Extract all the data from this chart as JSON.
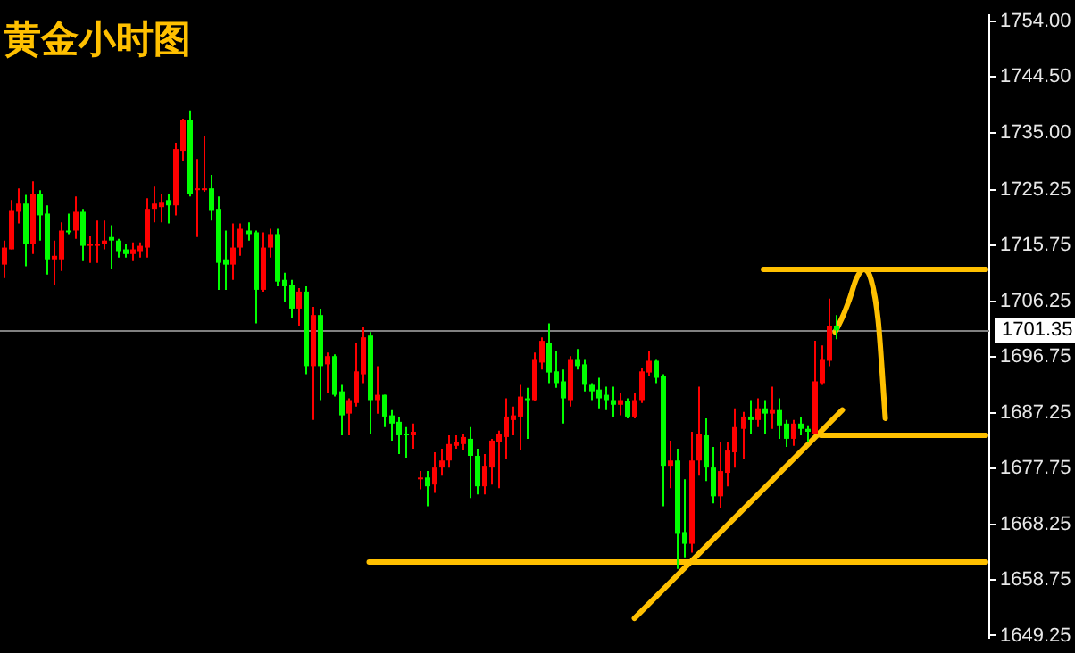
{
  "chart_data": {
    "type": "candlestick",
    "title": "黄金小时图",
    "tick_labels": "y",
    "categories": [
      null,
      null,
      null,
      null,
      null,
      null,
      null,
      null,
      null,
      null,
      null,
      null,
      null,
      null,
      null,
      null,
      null,
      null,
      null,
      null,
      null,
      null,
      null,
      null,
      null,
      null,
      null,
      null,
      null,
      null,
      null,
      null,
      null,
      null,
      null,
      null,
      null,
      null,
      null,
      null,
      null,
      null,
      null,
      null,
      null,
      null,
      null,
      null,
      null,
      null,
      null,
      null,
      null,
      null,
      null,
      null,
      null,
      null,
      null,
      null,
      null,
      null,
      null,
      null,
      null,
      null,
      null,
      null,
      null,
      null,
      null,
      null,
      null,
      null,
      null,
      null,
      null,
      null,
      null,
      null,
      null,
      null,
      null,
      null,
      null,
      null,
      null,
      null,
      null,
      null,
      null,
      null,
      null,
      null,
      null,
      null,
      null,
      null,
      null,
      null,
      null,
      null,
      null,
      null,
      null,
      null,
      null,
      null,
      null,
      null,
      null,
      null,
      null,
      null,
      null,
      null,
      null,
      null,
      null,
      null,
      null,
      null,
      null,
      null,
      null,
      null,
      null,
      null,
      null,
      null,
      null,
      null,
      null,
      null,
      null,
      null,
      null,
      null
    ],
    "ohlc": [
      [
        1712.5,
        1716.6,
        1710.2,
        1715.4
      ],
      [
        1715.1,
        1723.5,
        1715.1,
        1721.8
      ],
      [
        1721.5,
        1725.5,
        1719.5,
        1722.9
      ],
      [
        1722.9,
        1724.4,
        1712.2,
        1716.0
      ],
      [
        1716.0,
        1726.7,
        1714.3,
        1724.6
      ],
      [
        1724.6,
        1725.2,
        1716.6,
        1720.9
      ],
      [
        1721.2,
        1722.6,
        1710.8,
        1713.4
      ],
      [
        1713.4,
        1716.6,
        1709.1,
        1714.0
      ],
      [
        1713.4,
        1719.7,
        1711.4,
        1718.3
      ],
      [
        1718.3,
        1721.2,
        1717.7,
        1718.0
      ],
      [
        1718.3,
        1724.1,
        1716.9,
        1721.5
      ],
      [
        1721.5,
        1722.0,
        1713.1,
        1715.7
      ],
      [
        1715.7,
        1717.4,
        1712.8,
        1716.0
      ],
      [
        1715.7,
        1720.0,
        1712.8,
        1716.0
      ],
      [
        1716.0,
        1720.0,
        1715.1,
        1716.6
      ],
      [
        1717.2,
        1719.2,
        1711.7,
        1716.6
      ],
      [
        1716.6,
        1716.9,
        1713.7,
        1714.8
      ],
      [
        1715.1,
        1716.0,
        1713.7,
        1714.3
      ],
      [
        1714.3,
        1716.3,
        1713.1,
        1715.1
      ],
      [
        1714.8,
        1716.3,
        1713.7,
        1715.7
      ],
      [
        1715.4,
        1723.8,
        1713.7,
        1722.0
      ],
      [
        1722.0,
        1725.8,
        1719.7,
        1722.9
      ],
      [
        1722.3,
        1724.6,
        1719.7,
        1723.2
      ],
      [
        1723.5,
        1724.6,
        1719.5,
        1722.6
      ],
      [
        1722.6,
        1733.3,
        1720.9,
        1732.2
      ],
      [
        1731.9,
        1737.4,
        1730.1,
        1737.1
      ],
      [
        1737.1,
        1738.8,
        1724.1,
        1724.6
      ],
      [
        1725.2,
        1730.5,
        1717.2,
        1725.5
      ],
      [
        1725.2,
        1734.5,
        1724.9,
        1725.5
      ],
      [
        1725.5,
        1727.8,
        1720.0,
        1721.8
      ],
      [
        1722.0,
        1724.1,
        1708.2,
        1712.8
      ],
      [
        1713.4,
        1718.3,
        1708.2,
        1712.5
      ],
      [
        1712.5,
        1719.5,
        1709.9,
        1715.4
      ],
      [
        1715.4,
        1719.5,
        1714.0,
        1718.6
      ],
      [
        1718.3,
        1719.7,
        1716.6,
        1717.7
      ],
      [
        1718.0,
        1718.3,
        1702.5,
        1708.2
      ],
      [
        1708.2,
        1718.0,
        1707.9,
        1715.4
      ],
      [
        1715.4,
        1718.6,
        1713.7,
        1717.7
      ],
      [
        1717.7,
        1718.6,
        1708.8,
        1709.6
      ],
      [
        1709.9,
        1711.1,
        1706.2,
        1708.8
      ],
      [
        1709.1,
        1709.9,
        1703.3,
        1705.0
      ],
      [
        1705.0,
        1708.5,
        1702.1,
        1707.9
      ],
      [
        1707.9,
        1708.8,
        1693.8,
        1695.2
      ],
      [
        1695.2,
        1705.3,
        1686.0,
        1703.9
      ],
      [
        1703.9,
        1705.0,
        1689.4,
        1695.2
      ],
      [
        1695.5,
        1697.5,
        1690.6,
        1696.9
      ],
      [
        1696.9,
        1697.2,
        1690.0,
        1690.3
      ],
      [
        1690.9,
        1692.0,
        1683.4,
        1686.8
      ],
      [
        1687.1,
        1689.7,
        1683.4,
        1689.4
      ],
      [
        1688.9,
        1699.2,
        1688.3,
        1694.3
      ],
      [
        1693.8,
        1701.9,
        1692.3,
        1700.1
      ],
      [
        1700.4,
        1701.0,
        1683.7,
        1689.4
      ],
      [
        1689.4,
        1695.2,
        1687.1,
        1690.3
      ],
      [
        1690.3,
        1690.3,
        1684.8,
        1686.6
      ],
      [
        1686.8,
        1687.7,
        1682.5,
        1685.4
      ],
      [
        1685.7,
        1686.6,
        1680.2,
        1683.4
      ],
      [
        1683.7,
        1684.8,
        1679.6,
        1683.6
      ],
      [
        1683.4,
        1685.4,
        1681.1,
        1684.0
      ],
      [
        1675.9,
        1677.3,
        1674.2,
        1676.2
      ],
      [
        1676.2,
        1677.3,
        1671.3,
        1674.7
      ],
      [
        1675.0,
        1680.5,
        1673.6,
        1677.9
      ],
      [
        1677.9,
        1681.1,
        1676.5,
        1679.1
      ],
      [
        1679.1,
        1683.4,
        1677.9,
        1681.9
      ],
      [
        1681.6,
        1683.4,
        1681.1,
        1682.2
      ],
      [
        1681.9,
        1683.7,
        1680.8,
        1683.1
      ],
      [
        1682.8,
        1684.8,
        1672.7,
        1679.9
      ],
      [
        1679.9,
        1681.1,
        1673.3,
        1674.7
      ],
      [
        1674.7,
        1680.2,
        1673.3,
        1678.2
      ],
      [
        1677.9,
        1682.8,
        1675.0,
        1682.5
      ],
      [
        1682.2,
        1684.2,
        1674.4,
        1683.7
      ],
      [
        1683.1,
        1689.7,
        1679.3,
        1686.6
      ],
      [
        1686.0,
        1688.3,
        1683.4,
        1686.8
      ],
      [
        1686.6,
        1692.0,
        1680.8,
        1690.0
      ],
      [
        1689.7,
        1691.5,
        1682.8,
        1689.4
      ],
      [
        1689.4,
        1697.5,
        1689.2,
        1696.4
      ],
      [
        1695.8,
        1700.1,
        1694.6,
        1699.5
      ],
      [
        1699.2,
        1702.5,
        1692.3,
        1694.1
      ],
      [
        1694.3,
        1697.8,
        1691.5,
        1692.3
      ],
      [
        1692.6,
        1694.6,
        1685.4,
        1689.7
      ],
      [
        1689.4,
        1696.9,
        1688.3,
        1696.4
      ],
      [
        1696.4,
        1698.1,
        1694.6,
        1695.2
      ],
      [
        1695.5,
        1696.4,
        1690.9,
        1692.0
      ],
      [
        1692.0,
        1692.3,
        1689.4,
        1690.9
      ],
      [
        1691.2,
        1693.2,
        1688.0,
        1689.7
      ],
      [
        1690.3,
        1691.7,
        1687.7,
        1689.4
      ],
      [
        1689.4,
        1691.7,
        1686.6,
        1688.6
      ],
      [
        1688.6,
        1690.6,
        1686.8,
        1689.4
      ],
      [
        1689.2,
        1689.7,
        1686.3,
        1686.6
      ],
      [
        1686.6,
        1690.6,
        1686.3,
        1689.4
      ],
      [
        1689.4,
        1694.9,
        1688.9,
        1694.3
      ],
      [
        1694.1,
        1697.8,
        1693.5,
        1696.1
      ],
      [
        1696.1,
        1696.4,
        1692.3,
        1693.2
      ],
      [
        1693.5,
        1693.8,
        1671.3,
        1678.2
      ],
      [
        1678.2,
        1682.5,
        1674.4,
        1679.1
      ],
      [
        1679.1,
        1681.1,
        1660.6,
        1666.6
      ],
      [
        1666.9,
        1675.9,
        1662.6,
        1664.9
      ],
      [
        1664.9,
        1684.0,
        1663.4,
        1679.1
      ],
      [
        1679.1,
        1691.7,
        1676.5,
        1683.7
      ],
      [
        1683.4,
        1686.3,
        1675.6,
        1677.9
      ],
      [
        1677.9,
        1681.4,
        1671.8,
        1673.0
      ],
      [
        1673.0,
        1682.2,
        1671.0,
        1677.3
      ],
      [
        1677.0,
        1682.2,
        1674.7,
        1680.8
      ],
      [
        1680.5,
        1688.0,
        1677.9,
        1684.8
      ],
      [
        1684.5,
        1687.4,
        1679.3,
        1686.6
      ],
      [
        1686.6,
        1689.4,
        1683.7,
        1686.0
      ],
      [
        1686.0,
        1689.7,
        1684.8,
        1688.0
      ],
      [
        1688.0,
        1689.4,
        1683.7,
        1687.1
      ],
      [
        1687.1,
        1691.7,
        1684.5,
        1687.7
      ],
      [
        1687.7,
        1689.7,
        1682.8,
        1685.1
      ],
      [
        1685.4,
        1686.0,
        1681.4,
        1682.8
      ],
      [
        1682.8,
        1686.0,
        1681.6,
        1685.4
      ],
      [
        1685.4,
        1686.6,
        1683.4,
        1684.5
      ],
      [
        1684.5,
        1685.1,
        1682.2,
        1684.0
      ],
      [
        1683.7,
        1699.5,
        1683.7,
        1692.6
      ],
      [
        1692.3,
        1698.7,
        1692.0,
        1696.4
      ],
      [
        1696.1,
        1706.7,
        1695.2,
        1702.1
      ],
      [
        1702.1,
        1703.9,
        1699.8,
        1701.3
      ],
      null,
      null,
      null,
      null,
      null,
      null,
      null,
      null,
      null,
      null,
      null,
      null,
      null,
      null,
      null,
      null,
      null,
      null,
      null,
      null,
      null
    ],
    "colors": [
      "#ff0000",
      "#ff0000",
      "#ff0000",
      "#00ff00",
      "#ff0000",
      "#00ff00",
      "#00ff00",
      "#ff0000",
      "#ff0000",
      "#00ff00",
      "#ff0000",
      "#00ff00",
      "#ff0000",
      "#ff0000",
      "#ff0000",
      "#00ff00",
      "#00ff00",
      "#00ff00",
      "#ff0000",
      "#ff0000",
      "#ff0000",
      "#ff0000",
      "#ff0000",
      "#00ff00",
      "#ff0000",
      "#ff0000",
      "#00ff00",
      "#ff0000",
      "#ff0000",
      "#00ff00",
      "#00ff00",
      "#00ff00",
      "#ff0000",
      "#ff0000",
      "#00ff00",
      "#00ff00",
      "#ff0000",
      "#ff0000",
      "#00ff00",
      "#00ff00",
      "#00ff00",
      "#ff0000",
      "#00ff00",
      "#ff0000",
      "#00ff00",
      "#ff0000",
      "#00ff00",
      "#00ff00",
      "#ff0000",
      "#ff0000",
      "#ff0000",
      "#00ff00",
      "#ff0000",
      "#00ff00",
      "#00ff00",
      "#00ff00",
      "#00ff00",
      "#ff0000",
      "#ff0000",
      "#00ff00",
      "#ff0000",
      "#ff0000",
      "#ff0000",
      "#ff0000",
      "#ff0000",
      "#00ff00",
      "#00ff00",
      "#ff0000",
      "#ff0000",
      "#ff0000",
      "#ff0000",
      "#ff0000",
      "#ff0000",
      "#00ff00",
      "#ff0000",
      "#ff0000",
      "#00ff00",
      "#00ff00",
      "#00ff00",
      "#ff0000",
      "#00ff00",
      "#00ff00",
      "#00ff00",
      "#00ff00",
      "#00ff00",
      "#00ff00",
      "#ff0000",
      "#00ff00",
      "#ff0000",
      "#ff0000",
      "#ff0000",
      "#00ff00",
      "#00ff00",
      "#ff0000",
      "#00ff00",
      "#00ff00",
      "#ff0000",
      "#ff0000",
      "#00ff00",
      "#00ff00",
      "#ff0000",
      "#ff0000",
      "#ff0000",
      "#ff0000",
      "#00ff00",
      "#ff0000",
      "#00ff00",
      "#ff0000",
      "#00ff00",
      "#00ff00",
      "#ff0000",
      "#00ff00",
      "#00ff00",
      "#ff0000",
      "#ff0000",
      "#ff0000",
      "#00ff00",
      null,
      null,
      null,
      null,
      null,
      null,
      null,
      null,
      null,
      null,
      null,
      null,
      null,
      null,
      null,
      null,
      null,
      null,
      null,
      null,
      null
    ],
    "series": [
      {
        "type": "line",
        "color": "#ffc000",
        "values": [
          null,
          null,
          null,
          null,
          null,
          null,
          null,
          null,
          null,
          null,
          null,
          null,
          null,
          null,
          null,
          null,
          null,
          null,
          null,
          null,
          null,
          null,
          null,
          null,
          null,
          null,
          null,
          null,
          null,
          null,
          null,
          null,
          null,
          null,
          null,
          null,
          null,
          null,
          null,
          null,
          null,
          null,
          null,
          null,
          null,
          null,
          null,
          null,
          null,
          null,
          null,
          null,
          null,
          null,
          null,
          null,
          null,
          null,
          null,
          null,
          null,
          null,
          null,
          null,
          null,
          null,
          null,
          null,
          null,
          null,
          null,
          null,
          null,
          null,
          null,
          null,
          null,
          null,
          null,
          null,
          null,
          null,
          null,
          null,
          null,
          null,
          null,
          null,
          null,
          null,
          null,
          null,
          null,
          null,
          null,
          null,
          null,
          null,
          null,
          null,
          null,
          null,
          null,
          null,
          null,
          null,
          1711.7,
          null,
          null,
          null,
          null,
          null,
          null,
          null,
          null,
          null,
          null,
          null,
          null,
          null,
          null,
          null,
          null,
          null,
          null,
          null,
          null,
          null,
          null,
          null,
          null,
          null,
          null,
          null,
          null,
          null,
          null,
          1711.7
        ]
      },
      {
        "type": "line",
        "color": "#ffc000",
        "values": [
          null,
          null,
          null,
          null,
          null,
          null,
          null,
          null,
          null,
          null,
          null,
          null,
          null,
          null,
          null,
          null,
          null,
          null,
          null,
          null,
          null,
          null,
          null,
          null,
          null,
          null,
          null,
          null,
          null,
          null,
          null,
          null,
          null,
          null,
          null,
          null,
          null,
          null,
          null,
          null,
          null,
          null,
          null,
          null,
          null,
          null,
          null,
          null,
          null,
          null,
          null,
          null,
          null,
          null,
          null,
          null,
          null,
          null,
          null,
          null,
          null,
          null,
          null,
          null,
          null,
          null,
          null,
          null,
          null,
          null,
          null,
          null,
          null,
          null,
          null,
          null,
          null,
          null,
          null,
          null,
          null,
          null,
          null,
          null,
          null,
          null,
          null,
          null,
          null,
          null,
          null,
          null,
          null,
          null,
          null,
          null,
          null,
          null,
          null,
          null,
          null,
          null,
          null,
          null,
          null,
          null,
          null,
          null,
          null,
          null,
          null,
          null,
          null,
          null,
          1683.4,
          null,
          null,
          null,
          null,
          null,
          null,
          null,
          null,
          null,
          null,
          null,
          null,
          null,
          null,
          null,
          null,
          null,
          null,
          null,
          null,
          null,
          null,
          1683.4
        ]
      },
      {
        "type": "line",
        "color": "#ffc000",
        "values": [
          null,
          null,
          null,
          null,
          null,
          null,
          null,
          null,
          null,
          null,
          null,
          null,
          null,
          null,
          null,
          null,
          null,
          null,
          null,
          null,
          null,
          null,
          null,
          null,
          null,
          null,
          null,
          null,
          null,
          null,
          null,
          null,
          null,
          null,
          null,
          null,
          null,
          null,
          null,
          null,
          null,
          null,
          null,
          null,
          null,
          null,
          null,
          null,
          null,
          null,
          null,
          1661.8,
          null,
          null,
          null,
          null,
          null,
          null,
          null,
          null,
          null,
          null,
          null,
          null,
          null,
          null,
          null,
          null,
          null,
          null,
          null,
          null,
          null,
          null,
          null,
          null,
          null,
          null,
          null,
          null,
          null,
          null,
          null,
          null,
          null,
          null,
          null,
          null,
          null,
          null,
          null,
          null,
          null,
          null,
          null,
          null,
          null,
          null,
          null,
          null,
          null,
          null,
          null,
          null,
          null,
          null,
          null,
          null,
          null,
          null,
          null,
          null,
          null,
          null,
          null,
          null,
          null,
          null,
          null,
          null,
          null,
          null,
          null,
          null,
          null,
          null,
          null,
          null,
          null,
          null,
          null,
          null,
          null,
          null,
          null,
          null,
          null,
          1661.8
        ]
      },
      {
        "type": "line",
        "color": "#ffc000",
        "values": [
          null,
          null,
          null,
          null,
          null,
          null,
          null,
          null,
          null,
          null,
          null,
          null,
          null,
          null,
          null,
          null,
          null,
          null,
          null,
          null,
          null,
          null,
          null,
          null,
          null,
          null,
          null,
          null,
          null,
          null,
          null,
          null,
          null,
          null,
          null,
          null,
          null,
          null,
          null,
          null,
          null,
          null,
          null,
          null,
          null,
          null,
          null,
          null,
          null,
          null,
          null,
          null,
          null,
          null,
          null,
          null,
          null,
          null,
          null,
          null,
          null,
          null,
          null,
          null,
          null,
          null,
          null,
          null,
          null,
          null,
          null,
          null,
          null,
          null,
          null,
          null,
          null,
          null,
          null,
          null,
          null,
          null,
          null,
          null,
          null,
          null,
          null,
          null,
          1652.2,
          null,
          null,
          null,
          null,
          null,
          null,
          null,
          null,
          null,
          null,
          null,
          null,
          null,
          null,
          null,
          null,
          null,
          null,
          null,
          null,
          null,
          null,
          null,
          null,
          null,
          null,
          null,
          null,
          1687.7,
          null,
          null,
          null,
          null,
          null,
          null,
          null,
          null,
          null,
          null,
          null,
          null,
          null,
          null,
          null,
          null,
          null,
          null,
          null,
          null
        ]
      },
      {
        "type": "line",
        "color": "#ffc000",
        "values": [
          null,
          null,
          null,
          null,
          null,
          null,
          null,
          null,
          null,
          null,
          null,
          null,
          null,
          null,
          null,
          null,
          null,
          null,
          null,
          null,
          null,
          null,
          null,
          null,
          null,
          null,
          null,
          null,
          null,
          null,
          null,
          null,
          null,
          null,
          null,
          null,
          null,
          null,
          null,
          null,
          null,
          null,
          null,
          null,
          null,
          null,
          null,
          null,
          null,
          null,
          null,
          null,
          null,
          null,
          null,
          null,
          null,
          null,
          null,
          null,
          null,
          null,
          null,
          null,
          null,
          null,
          null,
          null,
          null,
          null,
          null,
          null,
          null,
          null,
          null,
          null,
          null,
          null,
          null,
          null,
          null,
          null,
          null,
          null,
          null,
          null,
          null,
          null,
          null,
          null,
          null,
          null,
          null,
          null,
          null,
          null,
          null,
          null,
          null,
          null,
          null,
          null,
          null,
          null,
          null,
          null,
          null,
          null,
          null,
          null,
          null,
          null,
          null,
          null,
          null,
          null,
          1701.0,
          1703.5,
          1706.6,
          1710.2,
          1711.7,
          1710.0,
          1703.0,
          1686.3,
          null,
          null,
          null,
          null,
          null,
          null,
          null,
          null,
          null,
          null,
          null,
          null,
          null,
          null
        ]
      }
    ],
    "ref_lines": [
      {
        "axis": "y",
        "value": 1701.35,
        "label": "1701.35",
        "color": "#808080"
      }
    ],
    "ylim": [
      1648.9,
      1755.0
    ],
    "yticks": [
      {
        "value": 1754,
        "label": "1754.00"
      },
      {
        "value": 1744.5,
        "label": "1744.50"
      },
      {
        "value": 1735,
        "label": "1735.00"
      },
      1725.25,
      1715.75,
      1706.25,
      1696.75,
      1687.25,
      1677.75,
      1668.25,
      1658.75,
      1649.25
    ]
  }
}
